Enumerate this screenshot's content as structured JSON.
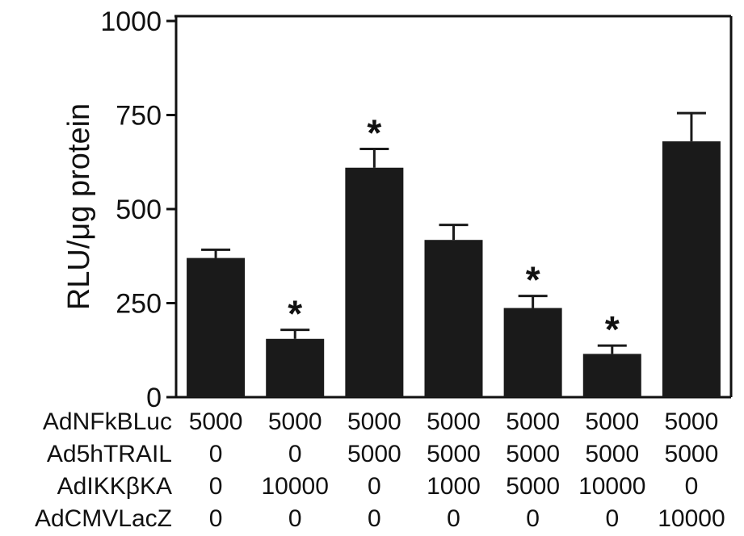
{
  "chart_data": {
    "type": "bar",
    "title": "",
    "xlabel": "",
    "ylabel": "RLU/μg protein",
    "ylim": [
      0,
      1000
    ],
    "yticks": [
      0,
      250,
      500,
      750,
      1000
    ],
    "grid": false,
    "legend": "none",
    "bar_color": "#1a1a1a",
    "values": [
      370,
      155,
      610,
      418,
      237,
      115,
      680
    ],
    "errors": [
      22,
      24,
      50,
      40,
      32,
      22,
      75
    ],
    "significant": [
      "",
      "*",
      "*",
      "",
      "*",
      "*",
      ""
    ],
    "treatment_table": {
      "rows": [
        {
          "label": "AdNFkBLuc",
          "values": [
            "5000",
            "5000",
            "5000",
            "5000",
            "5000",
            "5000",
            "5000"
          ]
        },
        {
          "label": "Ad5hTRAIL",
          "values": [
            "0",
            "0",
            "5000",
            "5000",
            "5000",
            "5000",
            "5000"
          ]
        },
        {
          "label": "AdIKKβKA",
          "values": [
            "0",
            "10000",
            "0",
            "1000",
            "5000",
            "10000",
            "0"
          ]
        },
        {
          "label": "AdCMVLacZ",
          "values": [
            "0",
            "0",
            "0",
            "0",
            "0",
            "0",
            "10000"
          ]
        }
      ]
    }
  }
}
